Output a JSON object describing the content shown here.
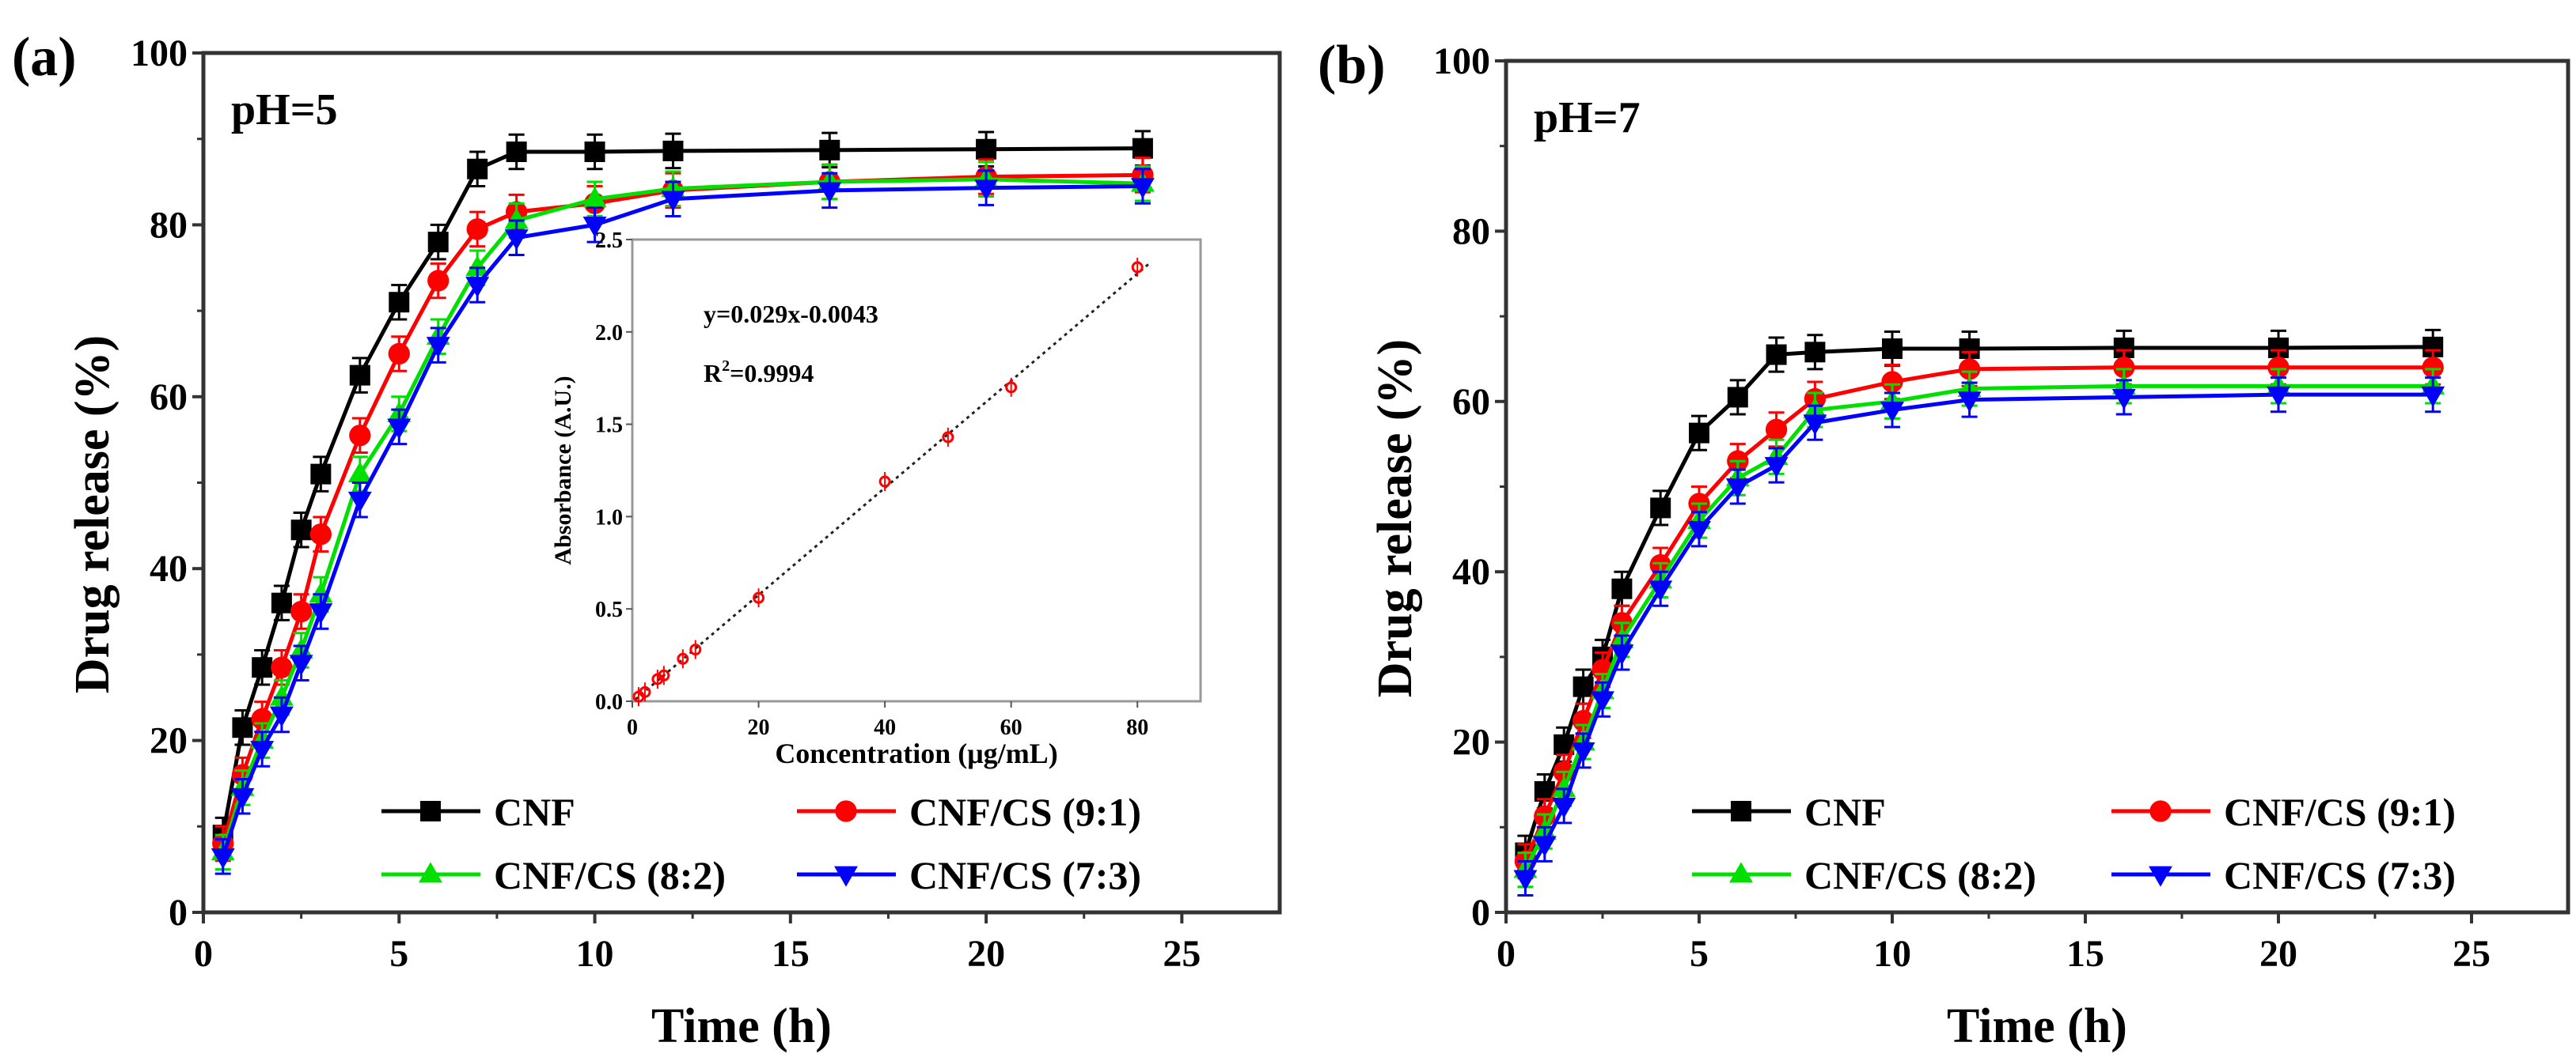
{
  "chart_data": [
    {
      "type": "line",
      "panel_label": "(a)",
      "annotation": "pH=5",
      "xlabel": "Time (h)",
      "ylabel": "Drug release (%)",
      "xlim": [
        0,
        27.5
      ],
      "ylim": [
        0,
        100
      ],
      "xticks": [
        0,
        5,
        10,
        15,
        20,
        25
      ],
      "yticks": [
        0,
        20,
        40,
        60,
        80,
        100
      ],
      "grid": false,
      "legend_position": "bottom-inside",
      "x": [
        0.5,
        1,
        1.5,
        2,
        2.5,
        3,
        4,
        5,
        6,
        7,
        8,
        10,
        12,
        16,
        20,
        24
      ],
      "series": [
        {
          "name": "CNF",
          "color": "#000000",
          "marker": "square",
          "values": [
            9,
            21.5,
            28.5,
            36,
            44.5,
            51,
            62.5,
            71,
            78,
            86.5,
            88.5,
            88.5,
            88.6,
            88.7,
            88.8,
            88.9
          ],
          "error": 2
        },
        {
          "name": "CNF/CS (9:1)",
          "color": "#ff0000",
          "marker": "circle",
          "values": [
            8,
            16,
            22.5,
            28.5,
            35,
            44,
            55.5,
            65,
            73.5,
            79.5,
            81.5,
            82.5,
            84,
            85,
            85.6,
            85.8
          ],
          "error": 2
        },
        {
          "name": "CNF/CS (8:2)",
          "color": "#00e000",
          "marker": "triangle-up",
          "values": [
            7,
            14.5,
            20,
            25,
            30.5,
            37,
            51,
            58,
            67,
            75,
            80.5,
            83,
            84.2,
            85,
            85.3,
            84.8
          ],
          "error": 2
        },
        {
          "name": "CNF/CS (7:3)",
          "color": "#0000ff",
          "marker": "triangle-down",
          "values": [
            6.5,
            13.5,
            19,
            23,
            29,
            35,
            48,
            56.5,
            66,
            73,
            78.5,
            80,
            83,
            84,
            84.3,
            84.5
          ],
          "error": 2
        }
      ],
      "inset": {
        "type": "scatter",
        "xlabel": "Concentration (μg/mL)",
        "ylabel": "Absorbance (A.U.)",
        "xlim": [
          0,
          90
        ],
        "ylim": [
          0,
          2.5
        ],
        "xticks": [
          0,
          20,
          40,
          60,
          80
        ],
        "yticks": [
          0.0,
          0.5,
          1.0,
          1.5,
          2.0,
          2.5
        ],
        "equation": "y=0.029x-0.0043",
        "r2_label": "R",
        "r2_sup": "2",
        "r2_value": "=0.9994",
        "fit": {
          "slope": 0.029,
          "intercept": -0.0043
        },
        "color": "#ff0000",
        "x": [
          1,
          2,
          4,
          5,
          8,
          10,
          20,
          40,
          50,
          60,
          80
        ],
        "y": [
          0.025,
          0.05,
          0.12,
          0.14,
          0.23,
          0.28,
          0.56,
          1.19,
          1.43,
          1.7,
          2.35
        ]
      }
    },
    {
      "type": "line",
      "panel_label": "(b)",
      "annotation": "pH=7",
      "xlabel": "Time (h)",
      "ylabel": "Drug release (%)",
      "xlim": [
        0,
        27.5
      ],
      "ylim": [
        0,
        100
      ],
      "xticks": [
        0,
        5,
        10,
        15,
        20,
        25
      ],
      "yticks": [
        0,
        20,
        40,
        60,
        80,
        100
      ],
      "grid": false,
      "legend_position": "bottom-inside",
      "x": [
        0.5,
        1,
        1.5,
        2,
        2.5,
        3,
        4,
        5,
        6,
        7,
        8,
        10,
        12,
        16,
        20,
        24
      ],
      "series": [
        {
          "name": "CNF",
          "color": "#000000",
          "marker": "square",
          "values": [
            7,
            14.2,
            19.7,
            26.5,
            30,
            38,
            47.5,
            56.3,
            60.5,
            65.5,
            65.8,
            66.2,
            66.2,
            66.3,
            66.3,
            66.4
          ],
          "error": 2
        },
        {
          "name": "CNF/CS (9:1)",
          "color": "#ff0000",
          "marker": "circle",
          "values": [
            6,
            11.3,
            16.5,
            22.5,
            28.5,
            34,
            40.8,
            48,
            53,
            56.7,
            60.3,
            62.3,
            63.8,
            64,
            64,
            64
          ],
          "error": 2
        },
        {
          "name": "CNF/CS (8:2)",
          "color": "#00e000",
          "marker": "triangle-up",
          "values": [
            5,
            9.5,
            14.5,
            20,
            26,
            32,
            39,
            46,
            51,
            53.5,
            59,
            60,
            61.5,
            61.8,
            61.8,
            61.8
          ],
          "error": 2
        },
        {
          "name": "CNF/CS (7:3)",
          "color": "#0000ff",
          "marker": "triangle-down",
          "values": [
            4,
            8,
            12.5,
            19,
            25,
            30.5,
            38,
            45,
            50,
            52.5,
            57.5,
            59,
            60.2,
            60.5,
            60.8,
            60.8
          ],
          "error": 2
        }
      ]
    }
  ]
}
